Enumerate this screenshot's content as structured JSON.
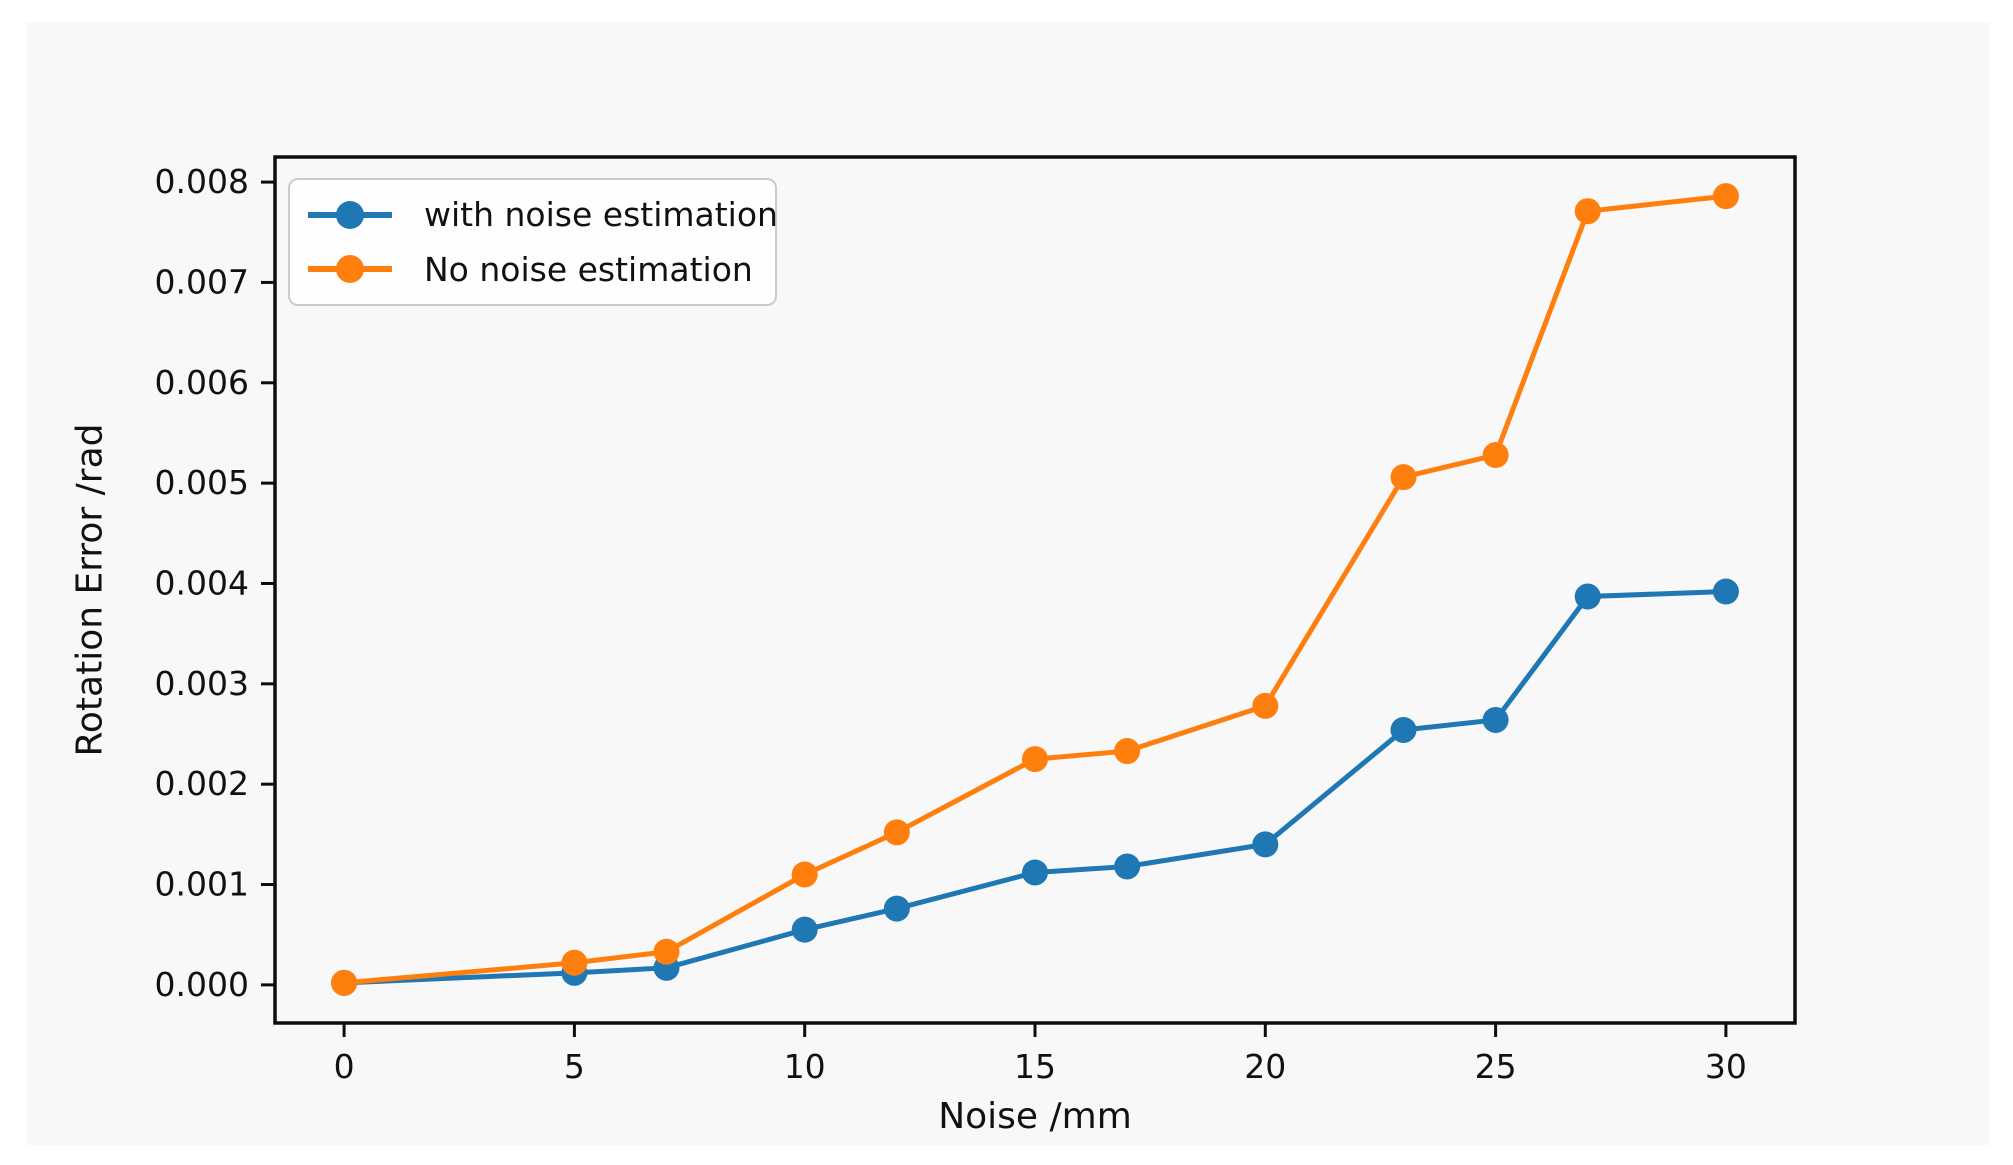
{
  "page": {
    "background": "#ffffff",
    "figure_background": "#f8f8f8"
  },
  "chart_data": {
    "type": "line",
    "title": "",
    "xlabel": "Noise /mm",
    "ylabel": "Rotation Error /rad",
    "grid": false,
    "legend_position": "upper-left",
    "axis_color": "#0d0d0d",
    "tick_label_color": "#111111",
    "xlim": [
      -1.5,
      31.5
    ],
    "ylim": [
      -0.00038,
      0.00825
    ],
    "x": [
      0,
      5,
      7,
      10,
      12,
      15,
      17,
      20,
      23,
      25,
      27,
      30
    ],
    "series": [
      {
        "name": "with noise estimation",
        "color": "#1f77b4",
        "values": [
          2e-05,
          0.00012,
          0.00017,
          0.00055,
          0.00076,
          0.00112,
          0.00118,
          0.0014,
          0.00254,
          0.00264,
          0.00387,
          0.00392
        ]
      },
      {
        "name": "No noise estimation",
        "color": "#ff7f0e",
        "values": [
          2e-05,
          0.00022,
          0.00033,
          0.0011,
          0.00152,
          0.00225,
          0.00233,
          0.00278,
          0.00506,
          0.00528,
          0.00771,
          0.00786
        ]
      }
    ],
    "x_ticks": [
      {
        "value": 0,
        "label": "0"
      },
      {
        "value": 5,
        "label": "5"
      },
      {
        "value": 10,
        "label": "10"
      },
      {
        "value": 15,
        "label": "15"
      },
      {
        "value": 20,
        "label": "20"
      },
      {
        "value": 25,
        "label": "25"
      },
      {
        "value": 30,
        "label": "30"
      }
    ],
    "y_ticks": [
      {
        "value": 0.0,
        "label": "0.000"
      },
      {
        "value": 0.001,
        "label": "0.001"
      },
      {
        "value": 0.002,
        "label": "0.002"
      },
      {
        "value": 0.003,
        "label": "0.003"
      },
      {
        "value": 0.004,
        "label": "0.004"
      },
      {
        "value": 0.005,
        "label": "0.005"
      },
      {
        "value": 0.006,
        "label": "0.006"
      },
      {
        "value": 0.007,
        "label": "0.007"
      },
      {
        "value": 0.008,
        "label": "0.008"
      }
    ]
  }
}
